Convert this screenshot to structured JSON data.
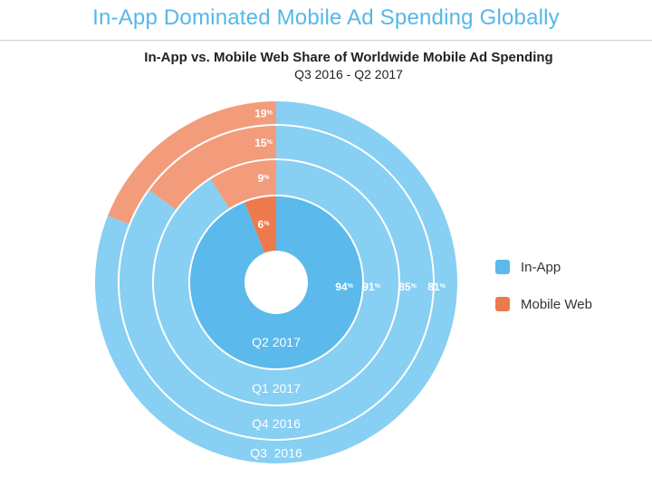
{
  "header": {
    "headline": "In-App Dominated Mobile Ad Spending Globally"
  },
  "chart_data": {
    "type": "pie",
    "subtype": "nested-donut",
    "title": "In-App vs. Mobile Web Share of Worldwide Mobile Ad Spending",
    "subtitle": "Q3 2016 - Q2 2017",
    "series": [
      {
        "name": "In-App",
        "color": "#5bb9ec"
      },
      {
        "name": "Mobile Web",
        "color": "#ed7a4d"
      }
    ],
    "rings": [
      {
        "period": "Q2 2017",
        "in_app": 94,
        "in_app_label": "94",
        "mobile_web": 6,
        "mobile_web_label": "6",
        "in_app_color": "#5bb9ec",
        "mobile_web_color": "#ed7a4d"
      },
      {
        "period": "Q1 2017",
        "in_app": 91,
        "in_app_label": "91",
        "mobile_web": 9,
        "mobile_web_label": "9",
        "in_app_color": "#87cff3",
        "mobile_web_color": "#f29c7c"
      },
      {
        "period": "Q4 2016",
        "in_app": 85,
        "in_app_label": "85",
        "mobile_web": 15,
        "mobile_web_label": "15",
        "in_app_color": "#87cff3",
        "mobile_web_color": "#f29c7c"
      },
      {
        "period": "Q3  2016",
        "in_app": 81,
        "in_app_label": "81",
        "mobile_web": 19,
        "mobile_web_label": "19",
        "in_app_color": "#87cff3",
        "mobile_web_color": "#f29c7c"
      }
    ],
    "percent_symbol": "%",
    "legend": {
      "placement": "right",
      "items": [
        {
          "label": "In-App",
          "color": "#5bb9ec"
        },
        {
          "label": "Mobile Web",
          "color": "#ed7a4d"
        }
      ]
    }
  }
}
